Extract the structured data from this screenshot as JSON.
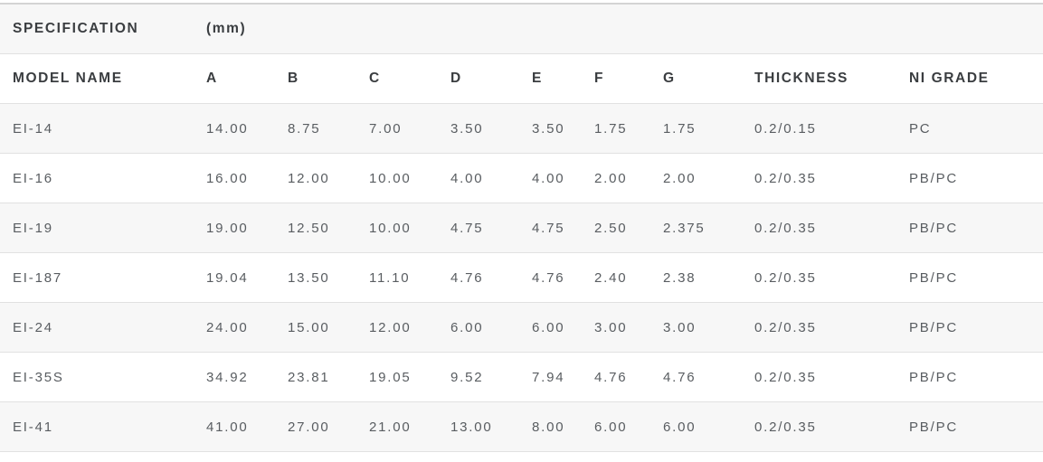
{
  "table": {
    "title_row": {
      "label": "SPECIFICATION",
      "unit": "(mm)"
    },
    "columns": [
      "MODEL NAME",
      "A",
      "B",
      "C",
      "D",
      "E",
      "F",
      "G",
      "THICKNESS",
      "NI GRADE"
    ],
    "rows": [
      [
        "EI-14",
        "14.00",
        "8.75",
        "7.00",
        "3.50",
        "3.50",
        "1.75",
        "1.75",
        "0.2/0.15",
        "PC"
      ],
      [
        "EI-16",
        "16.00",
        "12.00",
        "10.00",
        "4.00",
        "4.00",
        "2.00",
        "2.00",
        "0.2/0.35",
        "PB/PC"
      ],
      [
        "EI-19",
        "19.00",
        "12.50",
        "10.00",
        "4.75",
        "4.75",
        "2.50",
        "2.375",
        "0.2/0.35",
        "PB/PC"
      ],
      [
        "EI-187",
        "19.04",
        "13.50",
        "11.10",
        "4.76",
        "4.76",
        "2.40",
        "2.38",
        "0.2/0.35",
        "PB/PC"
      ],
      [
        "EI-24",
        "24.00",
        "15.00",
        "12.00",
        "6.00",
        "6.00",
        "3.00",
        "3.00",
        "0.2/0.35",
        "PB/PC"
      ],
      [
        "EI-35S",
        "34.92",
        "23.81",
        "19.05",
        "9.52",
        "7.94",
        "4.76",
        "4.76",
        "0.2/0.35",
        "PB/PC"
      ],
      [
        "EI-41",
        "41.00",
        "27.00",
        "21.00",
        "13.00",
        "8.00",
        "6.00",
        "6.00",
        "0.2/0.35",
        "PB/PC"
      ]
    ],
    "colors": {
      "stripe_bg": "#f7f7f7",
      "row_bg": "#ffffff",
      "row_border": "#e1e1e1",
      "top_border": "#d4d4d4",
      "header_text": "#3a3d40",
      "data_text": "#595d61"
    }
  }
}
